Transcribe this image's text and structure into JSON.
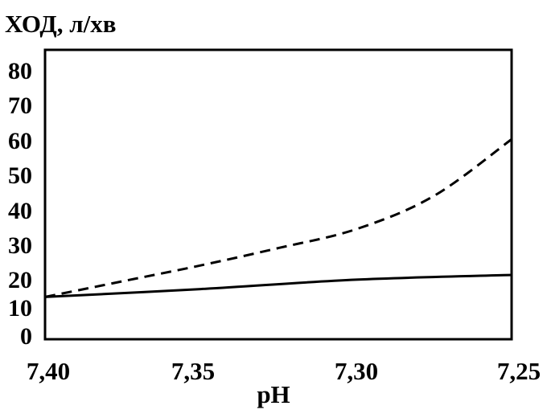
{
  "chart_data": {
    "type": "line",
    "ylabel": "ХОД, л/хв",
    "xlabel": "pH",
    "x_ticks": [
      "7,40",
      "7,35",
      "7,30",
      "7,25"
    ],
    "y_ticks": [
      "0",
      "10",
      "20",
      "30",
      "40",
      "50",
      "60",
      "70",
      "80"
    ],
    "xlim": [
      7.4,
      7.25
    ],
    "ylim": [
      0,
      80
    ],
    "x_reversed": true,
    "grid": false,
    "legend": "none",
    "series": [
      {
        "style": "solid",
        "x": [
          7.4,
          7.35,
          7.3,
          7.25
        ],
        "y": [
          6,
          8.5,
          11.5,
          13
        ]
      },
      {
        "style": "dashed",
        "x": [
          7.4,
          7.375,
          7.35,
          7.325,
          7.3,
          7.275,
          7.25
        ],
        "y": [
          6,
          11,
          16,
          21.5,
          27.5,
          38,
          56
        ]
      }
    ]
  }
}
